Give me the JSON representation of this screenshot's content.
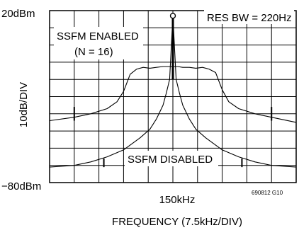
{
  "chart_data": {
    "type": "line",
    "xlabel": "FREQUENCY (7.5kHz/DIV)",
    "ylabel": "10dB/DIV",
    "y_top_label": "20dBm",
    "y_bottom_label": "−80dBm",
    "center_tick_label": "150kHz",
    "ylim": [
      -80,
      20
    ],
    "xlim": [
      -37.5,
      37.5
    ],
    "x_unit": "kHz offset from 150kHz",
    "grid": true,
    "figure_code": "690812 G10",
    "annotations": {
      "res_bw": "RES BW = 220Hz",
      "ssfm_enabled_line1": "SSFM ENABLED",
      "ssfm_enabled_line2": "(N = 16)",
      "ssfm_disabled": "SSFM DISABLED"
    },
    "series": [
      {
        "name": "SSFM ENABLED",
        "x": [
          -37.5,
          -30,
          -25,
          -20,
          -17,
          -15,
          -13,
          -11,
          -9,
          -7,
          -5,
          -3,
          -1.5,
          0,
          1.5,
          3,
          5,
          7,
          9,
          11,
          13,
          15,
          17,
          20,
          25,
          30,
          37.5
        ],
        "y": [
          -44,
          -42,
          -40,
          -37,
          -33,
          -27,
          -17,
          -14,
          -13,
          -13.5,
          -13,
          -12.5,
          -12.5,
          -12.5,
          -12.5,
          -13,
          -13,
          -13.5,
          -13,
          -14,
          -16,
          -26,
          -33,
          -37,
          -40,
          -42,
          -45
        ]
      },
      {
        "name": "SSFM DISABLED",
        "x": [
          -37.5,
          -30,
          -25,
          -20,
          -15,
          -10,
          -7,
          -5,
          -3,
          -2,
          -1,
          0,
          1,
          2,
          3,
          5,
          7,
          10,
          15,
          20,
          25,
          30,
          37.5
        ],
        "y": [
          -71,
          -70,
          -68,
          -65,
          -61,
          -54,
          -49,
          -43,
          -35,
          -28,
          -20,
          17,
          -20,
          -28,
          -35,
          -43,
          -49,
          -54,
          -61,
          -65,
          -68,
          -70,
          -71
        ]
      }
    ],
    "spurs": [
      {
        "x": -30,
        "y": -36
      },
      {
        "x": 30,
        "y": -36
      },
      {
        "x": -21,
        "y": -66
      },
      {
        "x": 21,
        "y": -66
      }
    ]
  }
}
